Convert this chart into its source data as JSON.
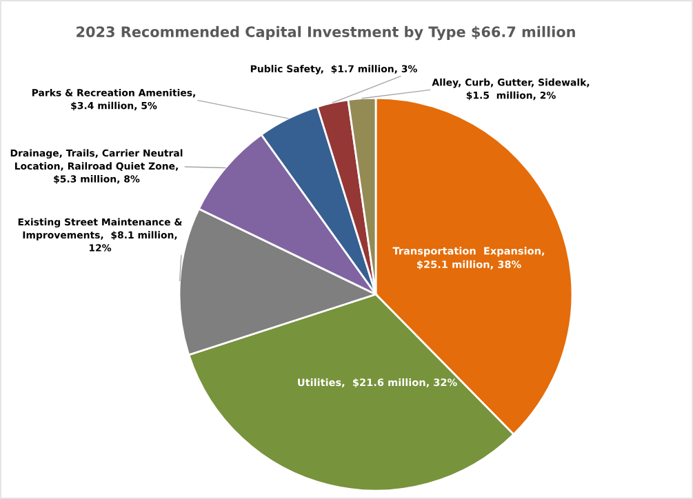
{
  "chart_data": {
    "type": "pie",
    "title": "2023 Recommended Capital Investment by Type $66.7 million",
    "categories": [
      "Transportation  Expansion,\n$25.1 million, 38%",
      "Utilities,  $21.6 million, 32%",
      "Existing Street Maintenance &\nImprovements,  $8.1 million,\n12%",
      "Drainage, Trails, Carrier Neutral\nLocation, Railroad Quiet Zone,\n$5.3 million, 8%",
      "Parks & Recreation Amenities,\n$3.4 million, 5%",
      "Public Safety,  $1.7 million, 3%",
      "Alley, Curb, Gutter, Sidewalk,\n$1.5  million, 2%"
    ],
    "values": [
      25.1,
      21.6,
      8.1,
      5.3,
      3.4,
      1.7,
      1.5
    ],
    "colors": [
      "#e46c0a",
      "#77933c",
      "#7f7f7f",
      "#8064a2",
      "#376092",
      "#953735",
      "#948a54"
    ]
  }
}
